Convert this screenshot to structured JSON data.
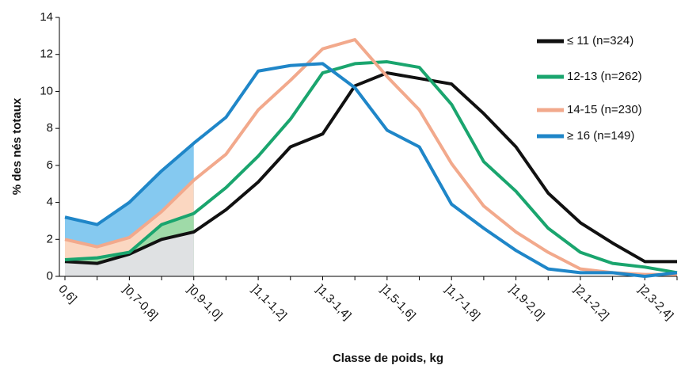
{
  "chart_data": {
    "type": "line",
    "y_label": "% des nés totaux",
    "x_label": "Classe de poids, kg",
    "categories": [
      "0,6]",
      null,
      "]0,7-0,8]",
      null,
      "]0,9-1,0]",
      null,
      "]1,1-1,2]",
      null,
      "]1,3-1,4]",
      null,
      "]1,5-1,6]",
      null,
      "]1,7-1,8]",
      null,
      "]1,9-2,0]",
      null,
      "]2,1-2,2]",
      null,
      "]2,3-2,4]",
      null
    ],
    "ylim": [
      0,
      14
    ],
    "yticks": [
      0,
      2,
      4,
      6,
      8,
      10,
      12,
      14
    ],
    "series": [
      {
        "name": "≤ 11 (n=324)",
        "color": "#111111",
        "fill_color": "#dfe1e3",
        "values": [
          0.8,
          0.7,
          1.2,
          2.0,
          2.4,
          3.6,
          5.1,
          7.0,
          7.7,
          10.3,
          11.0,
          10.7,
          10.4,
          8.8,
          7.0,
          4.5,
          2.9,
          1.8,
          0.8,
          0.8
        ]
      },
      {
        "name": "12-13 (n=262)",
        "color": "#1aa56e",
        "fill_color": "#9fdaa8",
        "values": [
          0.9,
          1.0,
          1.3,
          2.8,
          3.4,
          4.8,
          6.5,
          8.5,
          11.0,
          11.5,
          11.6,
          11.3,
          9.3,
          6.2,
          4.6,
          2.6,
          1.3,
          0.7,
          0.5,
          0.2
        ]
      },
      {
        "name": "14-15 (n=230)",
        "color": "#f2a98c",
        "fill_color": "#fbd7c1",
        "values": [
          2.0,
          1.6,
          2.1,
          3.5,
          5.2,
          6.6,
          9.0,
          10.6,
          12.3,
          12.8,
          10.8,
          9.0,
          6.1,
          3.8,
          2.4,
          1.3,
          0.4,
          0.2,
          0.1,
          0.1
        ]
      },
      {
        "name": "≥ 16 (n=149)",
        "color": "#1f86c8",
        "fill_color": "#85c9f0",
        "values": [
          3.2,
          2.8,
          4.0,
          5.7,
          7.2,
          8.6,
          11.1,
          11.4,
          11.5,
          10.2,
          7.9,
          7.0,
          3.9,
          2.6,
          1.4,
          0.4,
          0.2,
          0.2,
          0.0,
          0.2
        ]
      }
    ]
  }
}
